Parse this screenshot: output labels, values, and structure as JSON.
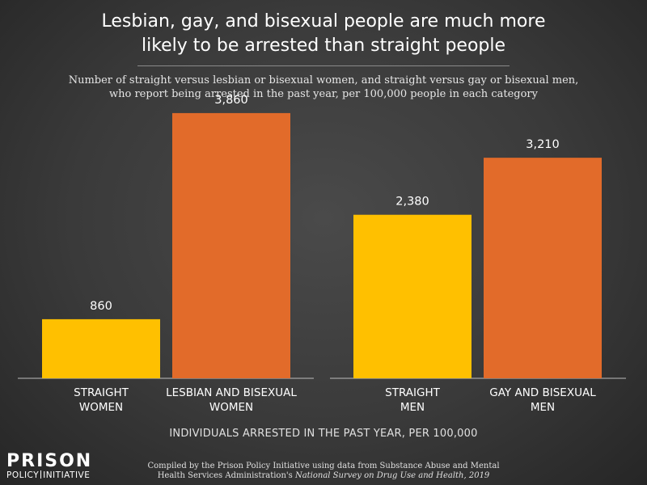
{
  "title_line1": "Lesbian, gay, and bisexual people are much more",
  "title_line2": "likely to be arrested than straight people",
  "subtitle_line1": "Number of straight versus lesbian or bisexual women, and straight versus gay or bisexual men,",
  "subtitle_line2": "who report being arrested in the past year, per 100,000 people in each category",
  "colors": {
    "straight": "#FFC000",
    "lgb": "#E26B2A",
    "baseline": "#bdbdbd"
  },
  "chart_data": {
    "type": "bar",
    "title": "Lesbian, gay, and bisexual people are much more likely to be arrested than straight people",
    "xlabel": "INDIVIDUALS ARRESTED IN THE PAST YEAR, PER 100,000",
    "ylabel": "",
    "ylim": [
      0,
      4000
    ],
    "grid": false,
    "groups": [
      {
        "bars": [
          {
            "category_line1": "STRAIGHT",
            "category_line2": "WOMEN",
            "value": 860,
            "value_label": "860",
            "color": "#FFC000"
          },
          {
            "category_line1": "LESBIAN AND BISEXUAL",
            "category_line2": "WOMEN",
            "value": 3860,
            "value_label": "3,860",
            "color": "#E26B2A"
          }
        ]
      },
      {
        "bars": [
          {
            "category_line1": "STRAIGHT",
            "category_line2": "MEN",
            "value": 2380,
            "value_label": "2,380",
            "color": "#FFC000"
          },
          {
            "category_line1": "GAY AND BISEXUAL",
            "category_line2": "MEN",
            "value": 3210,
            "value_label": "3,210",
            "color": "#E26B2A"
          }
        ]
      }
    ]
  },
  "logo": {
    "top": "PRISON",
    "bottom_left": "POLICY",
    "bottom_right": "INITIATIVE"
  },
  "source_line1": "Compiled by the Prison Policy Initiative using data from Substance Abuse and Mental",
  "source_line2_prefix": "Health Services Administration's ",
  "source_line2_italic": "National Survey on Drug Use and Health, 2019"
}
